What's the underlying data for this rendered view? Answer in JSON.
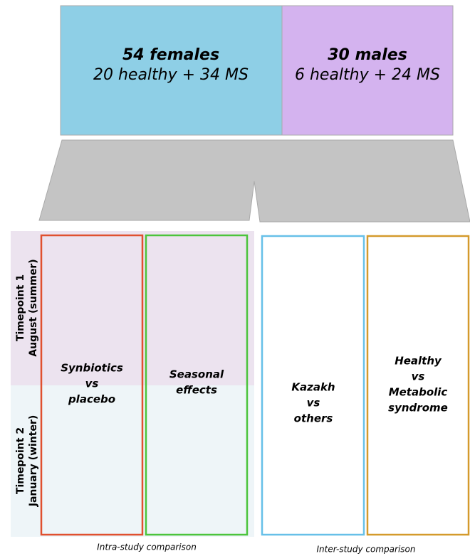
{
  "groups": [
    {
      "title": "54 females",
      "detail": "20 healthy + 34 MS"
    },
    {
      "title": "30 males",
      "detail": "6 healthy + 24 MS"
    }
  ],
  "timepoints": [
    {
      "title": "Timepoint 1",
      "detail": "August (summer)"
    },
    {
      "title": "Timepoint 2",
      "detail": "January (winter)"
    }
  ],
  "comparisons": [
    {
      "lines": [
        "Synbiotics",
        "vs",
        "placebo"
      ]
    },
    {
      "lines": [
        "Seasonal",
        "effects"
      ]
    },
    {
      "lines": [
        "Kazakh",
        "vs",
        "others"
      ]
    },
    {
      "lines": [
        "Healthy",
        "vs",
        "Metabolic",
        "syndrome"
      ]
    }
  ],
  "captions": [
    "Intra-study comparison",
    "Inter-study comparison"
  ]
}
